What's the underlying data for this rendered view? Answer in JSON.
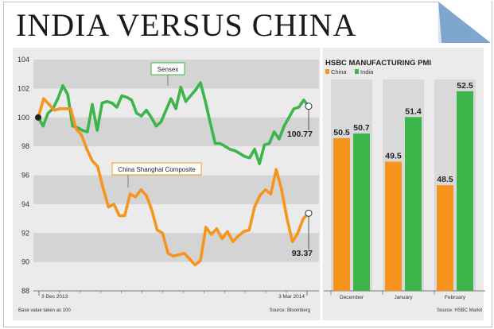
{
  "headline": "INDIA VERSUS CHINA",
  "colors": {
    "india": "#3cb54a",
    "china": "#f7941d",
    "band": "#d4d4d4",
    "panel": "#ebebeb"
  },
  "chart_data": [
    {
      "type": "line",
      "x_labels": [
        "3 Dec 2013",
        "3 Mar 2014"
      ],
      "ylim": [
        88,
        104
      ],
      "yticks": [
        "104",
        "102",
        "100",
        "98",
        "96",
        "94",
        "92",
        "90",
        "88"
      ],
      "footnote": "Base value taken as 100",
      "source": "Source: Bloomberg",
      "series": [
        {
          "name": "Sensex",
          "end_label": "100.77",
          "values": [
            100.0,
            99.4,
            100.3,
            100.6,
            101.3,
            102.2,
            101.6,
            99.4,
            99.3,
            99.1,
            99.0,
            100.9,
            99.1,
            101.0,
            101.1,
            101.0,
            100.7,
            101.5,
            101.4,
            101.2,
            100.3,
            100.1,
            100.5,
            100.0,
            99.4,
            99.7,
            100.5,
            101.3,
            100.6,
            102.1,
            101.1,
            101.5,
            101.9,
            102.4,
            101.1,
            99.6,
            98.2,
            98.2,
            98.0,
            97.8,
            97.7,
            97.5,
            97.3,
            97.2,
            97.8,
            96.8,
            98.1,
            98.2,
            99.0,
            98.5,
            99.4,
            100.0,
            100.6,
            100.7,
            101.2,
            100.77
          ]
        },
        {
          "name": "China Shanghai Composite",
          "end_label": "93.37",
          "values": [
            100.0,
            101.3,
            100.9,
            100.5,
            100.6,
            100.6,
            100.6,
            99.2,
            98.8,
            97.8,
            97.0,
            96.6,
            95.1,
            93.8,
            94.0,
            93.2,
            93.2,
            94.7,
            94.5,
            95.0,
            94.6,
            93.6,
            92.2,
            92.0,
            90.6,
            90.4,
            90.5,
            90.6,
            90.2,
            89.8,
            90.1,
            92.4,
            91.9,
            92.3,
            91.6,
            92.1,
            91.4,
            91.8,
            92.1,
            92.2,
            93.8,
            94.6,
            95.0,
            94.7,
            96.4,
            95.0,
            93.0,
            91.4,
            92.0,
            93.0,
            93.37
          ]
        }
      ]
    },
    {
      "type": "bar",
      "title": "HSBC MANUFACTURING PMI",
      "categories": [
        "December",
        "January",
        "February"
      ],
      "series": [
        {
          "name": "China",
          "values": [
            50.5,
            49.5,
            48.5
          ]
        },
        {
          "name": "India",
          "values": [
            50.7,
            51.4,
            52.5
          ]
        }
      ],
      "source": "Source: HSBC Markit"
    }
  ]
}
